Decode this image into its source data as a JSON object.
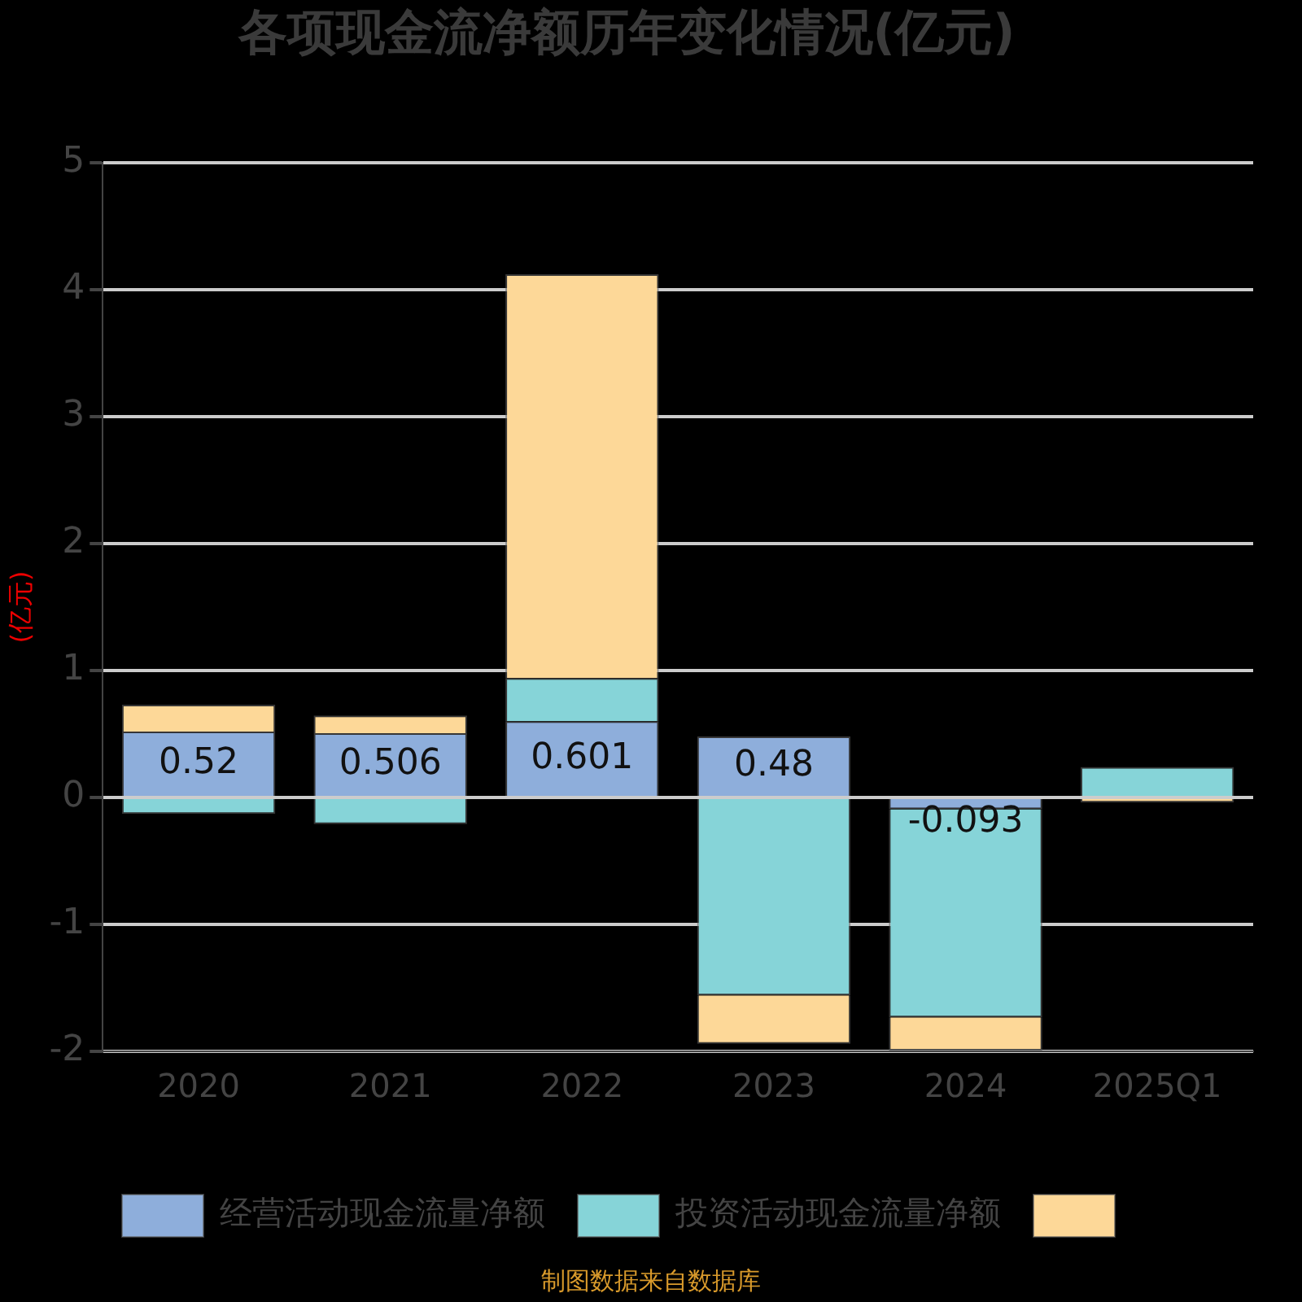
{
  "chart_data": {
    "type": "bar",
    "title": "各项现金流净额历年变化情况(亿元)",
    "ylabel": "(亿元)",
    "categories": [
      "2020",
      "2021",
      "2022",
      "2023",
      "2024",
      "2025Q1"
    ],
    "series": [
      {
        "name": "经营活动现金流量净额",
        "color": "#8eaedb",
        "values": [
          0.52,
          0.506,
          0.601,
          0.48,
          -0.093,
          null
        ],
        "value_labels": [
          "0.52",
          "0.506",
          "0.601",
          "0.48",
          "-0.093",
          null
        ]
      },
      {
        "name": "投资活动现金流量净额",
        "color": "#86d4d8",
        "values": [
          -0.13,
          -0.21,
          0.34,
          -1.56,
          -1.64,
          0.24
        ]
      },
      {
        "color": "#fdd898",
        "values": [
          0.21,
          0.14,
          3.18,
          -0.38,
          -0.26,
          -0.04
        ]
      }
    ],
    "stacked": true,
    "ylim": [
      -2,
      5
    ],
    "yticks": [
      -2,
      -1,
      0,
      1,
      2,
      3,
      4,
      5
    ],
    "grid": "y",
    "legend": "bottom",
    "annotations": [
      "制图数据来自数据库"
    ]
  }
}
